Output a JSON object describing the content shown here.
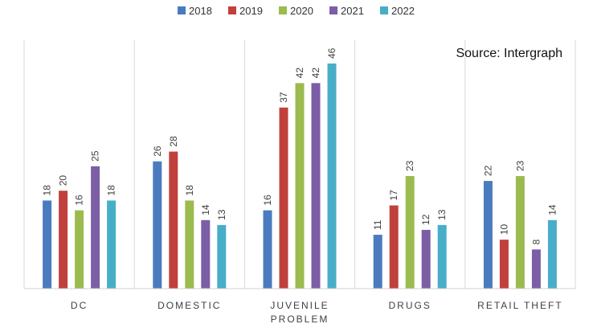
{
  "chart_data": {
    "type": "bar",
    "title": "",
    "xlabel": "",
    "ylabel": "",
    "ylim": [
      0,
      46
    ],
    "grid": false,
    "legend_position": "top",
    "annotation": "Source: Intergraph",
    "categories": [
      [
        "DC"
      ],
      [
        "DOMESTIC"
      ],
      [
        "JUVENILE",
        "PROBLEM"
      ],
      [
        "DRUGS"
      ],
      [
        "RETAIL THEFT"
      ]
    ],
    "series": [
      {
        "name": "2018",
        "color": "#4a7bbf",
        "values": [
          18,
          26,
          16,
          11,
          22
        ]
      },
      {
        "name": "2019",
        "color": "#c0403c",
        "values": [
          20,
          28,
          37,
          17,
          10
        ]
      },
      {
        "name": "2020",
        "color": "#9cbb4e",
        "values": [
          16,
          18,
          42,
          23,
          23
        ]
      },
      {
        "name": "2021",
        "color": "#7b5ea6",
        "values": [
          25,
          14,
          42,
          12,
          8
        ]
      },
      {
        "name": "2022",
        "color": "#48aec8",
        "values": [
          18,
          13,
          46,
          13,
          14
        ]
      }
    ]
  }
}
